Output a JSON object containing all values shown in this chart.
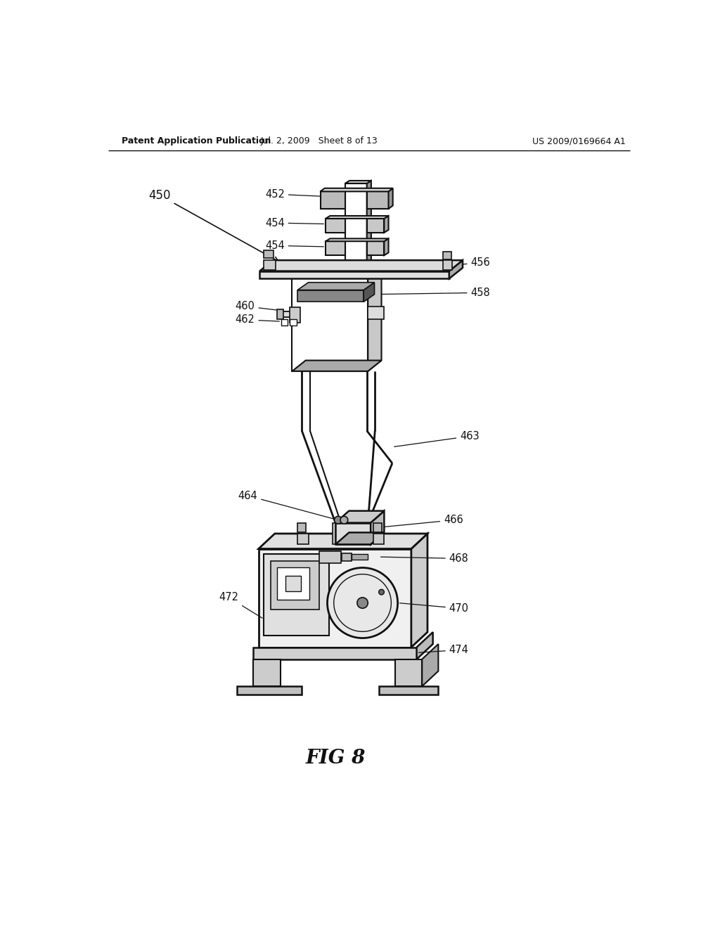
{
  "bg_color": "#ffffff",
  "header_left": "Patent Application Publication",
  "header_mid": "Jul. 2, 2009   Sheet 8 of 13",
  "header_right": "US 2009/0169664 A1",
  "fig_label": "FIG 8",
  "dark": "#111111",
  "gray1": "#888888",
  "gray2": "#aaaaaa",
  "gray3": "#cccccc",
  "gray4": "#444444"
}
